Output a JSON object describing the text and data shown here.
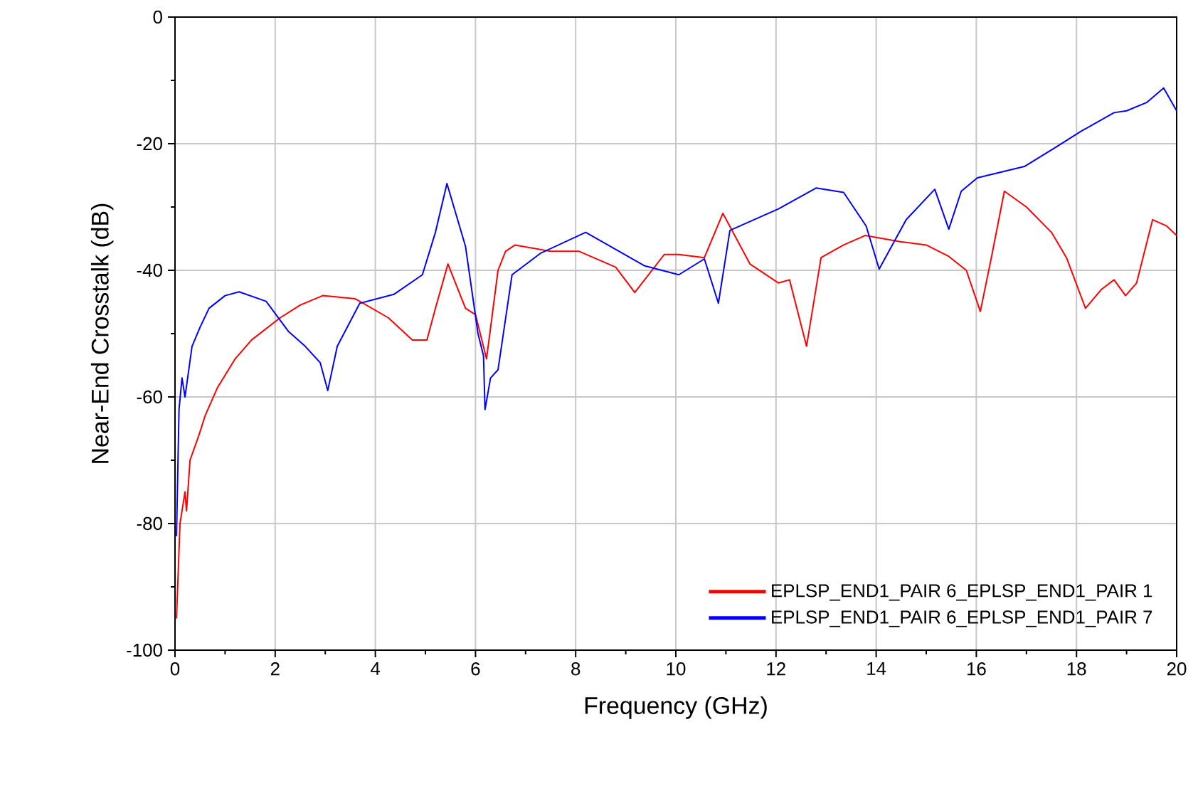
{
  "chart_data": {
    "type": "line",
    "xlabel": "Frequency (GHz)",
    "ylabel": "Near-End Crosstalk (dB)",
    "xlim": [
      0,
      20
    ],
    "ylim": [
      -100,
      0
    ],
    "xticks": [
      0,
      {
        "value": 1,
        "label": null
      },
      2,
      {
        "value": 3,
        "label": null
      },
      4,
      {
        "value": 5,
        "label": null
      },
      6,
      {
        "value": 7,
        "label": null
      },
      8,
      {
        "value": 9,
        "label": null
      },
      10,
      {
        "value": 11,
        "label": null
      },
      12,
      {
        "value": 13,
        "label": null
      },
      14,
      {
        "value": 15,
        "label": null
      },
      16,
      {
        "value": 17,
        "label": null
      },
      18,
      {
        "value": 19,
        "label": null
      },
      20
    ],
    "yticks": [
      -100,
      {
        "value": -90,
        "label": null
      },
      -80,
      {
        "value": -70,
        "label": null
      },
      -60,
      {
        "value": -50,
        "label": null
      },
      -40,
      {
        "value": -30,
        "label": null
      },
      -20,
      {
        "value": -10,
        "label": null
      },
      0
    ],
    "grid": true,
    "legend": "bottom right",
    "series": [
      {
        "name": "EPLSP_END1_PAIR 6_EPLSP_END1_PAIR 1",
        "color": "#ff0000",
        "x": [
          0.03,
          0.1,
          0.2,
          0.23,
          0.3,
          0.48,
          0.6,
          0.85,
          1.2,
          1.53,
          2.1,
          2.5,
          2.95,
          3.6,
          4.26,
          4.74,
          5.03,
          5.2,
          5.45,
          5.8,
          6.0,
          6.22,
          6.45,
          6.6,
          6.79,
          7.5,
          8.07,
          8.8,
          9.18,
          9.77,
          10.06,
          10.57,
          10.94,
          11.48,
          12.05,
          12.27,
          12.61,
          12.9,
          13.35,
          13.78,
          14.5,
          15.0,
          15.45,
          15.8,
          16.08,
          16.3,
          16.56,
          17.0,
          17.5,
          17.8,
          18.18,
          18.5,
          18.75,
          18.98,
          19.2,
          19.52,
          19.8,
          20.0
        ],
        "values": [
          -95,
          -80,
          -75,
          -78,
          -70,
          -66,
          -63,
          -58.5,
          -54,
          -51,
          -47.5,
          -45.5,
          -44,
          -44.5,
          -47.5,
          -51,
          -51,
          -46,
          -39,
          -46,
          -47,
          -54,
          -40,
          -37,
          -36,
          -37,
          -37,
          -39.5,
          -43.5,
          -37.5,
          -37.5,
          -38,
          -31,
          -39,
          -42,
          -41.5,
          -52,
          -38,
          -36,
          -34.5,
          -35.5,
          -36,
          -37.8,
          -40,
          -46.5,
          -38,
          -27.5,
          -30,
          -34,
          -38,
          -46,
          -43,
          -41.5,
          -44,
          -42,
          -32,
          -33,
          -34.5
        ]
      },
      {
        "name": "EPLSP_END1_PAIR 6_EPLSP_END1_PAIR 7",
        "color": "#0000ff",
        "x": [
          0.03,
          0.08,
          0.14,
          0.2,
          0.34,
          0.5,
          0.68,
          1.0,
          1.28,
          1.82,
          2.27,
          2.6,
          2.9,
          3.05,
          3.24,
          3.69,
          4.37,
          4.94,
          5.2,
          5.43,
          5.8,
          6.05,
          6.16,
          6.19,
          6.3,
          6.45,
          6.73,
          7.3,
          8.2,
          9.38,
          10.06,
          10.57,
          10.85,
          11.08,
          12.05,
          12.8,
          13.35,
          13.8,
          14.06,
          14.6,
          15.17,
          15.45,
          15.7,
          16.02,
          16.96,
          17.6,
          18.1,
          18.75,
          19.0,
          19.4,
          19.74,
          20.0
        ],
        "values": [
          -82,
          -62,
          -57,
          -60,
          -52,
          -49,
          -46,
          -44,
          -43.4,
          -44.9,
          -49.7,
          -52,
          -54.6,
          -59,
          -52,
          -45.2,
          -43.8,
          -40.7,
          -34,
          -26.3,
          -36.2,
          -50,
          -53.5,
          -62,
          -57,
          -55.7,
          -40.7,
          -37.3,
          -34,
          -39.3,
          -40.7,
          -38.2,
          -45.2,
          -33.7,
          -30.3,
          -27,
          -27.7,
          -33,
          -39.8,
          -32,
          -27.2,
          -33.5,
          -27.5,
          -25.4,
          -23.6,
          -20.5,
          -18,
          -15.1,
          -14.8,
          -13.5,
          -11.2,
          -14.8
        ]
      }
    ]
  }
}
